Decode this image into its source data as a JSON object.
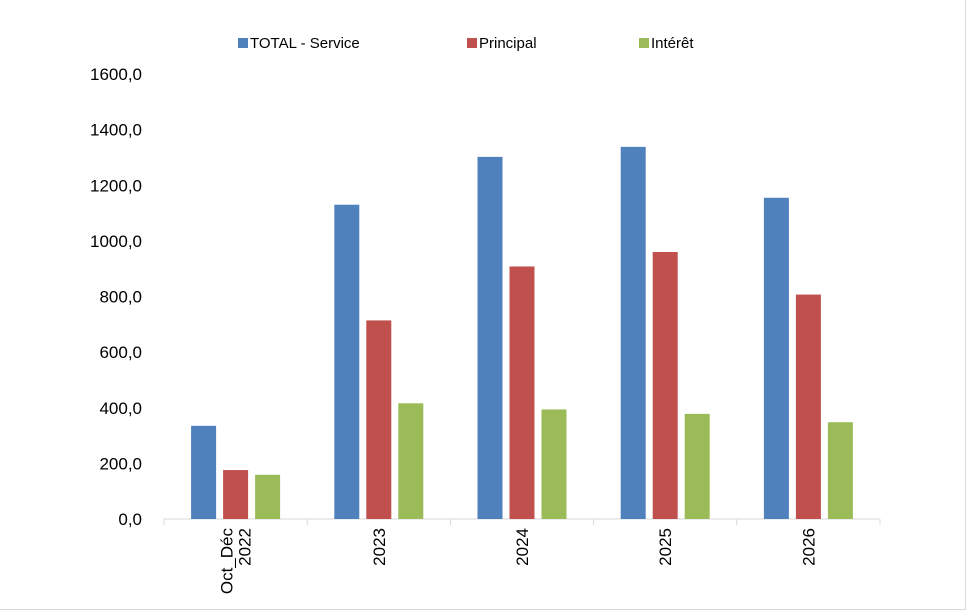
{
  "chart_data": {
    "type": "bar",
    "title": "",
    "xlabel": "",
    "ylabel": "",
    "categories": [
      [
        "Oct_Déc",
        "2022"
      ],
      [
        "2023"
      ],
      [
        "2024"
      ],
      [
        "2025"
      ],
      [
        "2026"
      ]
    ],
    "series": [
      {
        "name": "TOTAL - Service",
        "color": "#4f81bd",
        "values": [
          335,
          1130,
          1302,
          1338,
          1155
        ]
      },
      {
        "name": "Principal",
        "color": "#c0504d",
        "values": [
          176,
          714,
          908,
          960,
          807
        ]
      },
      {
        "name": "Intérêt",
        "color": "#9bbb59",
        "values": [
          159,
          416,
          394,
          378,
          348
        ]
      }
    ],
    "ylim": [
      0,
      1600
    ],
    "yticks": [
      "0,0",
      "200,0",
      "400,0",
      "600,0",
      "800,0",
      "1000,0",
      "1200,0",
      "1400,0",
      "1600,0"
    ],
    "legend_position": "top",
    "grid": false
  }
}
